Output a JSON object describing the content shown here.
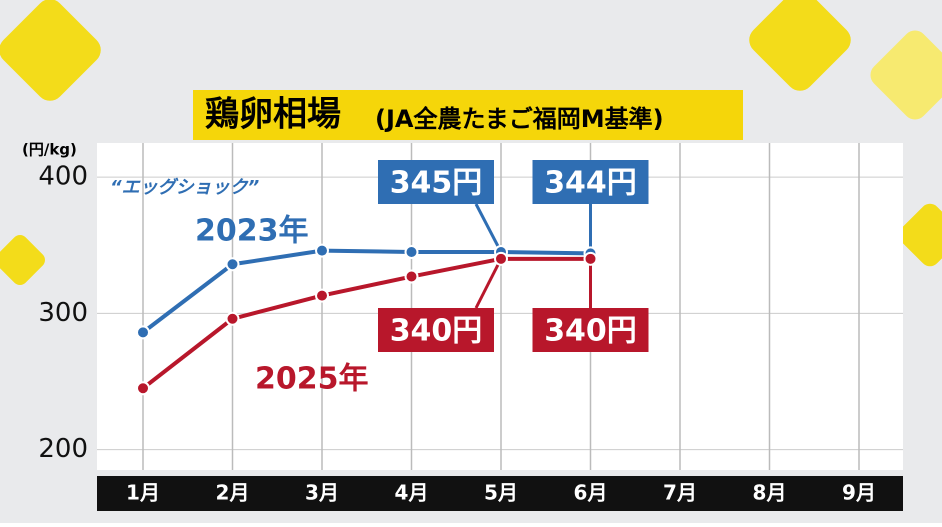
{
  "chart_data": {
    "type": "line",
    "title": "鶏卵相場",
    "subtitle": "(JA全農たまご福岡M基準)",
    "y_label": "(円/kg)",
    "annotation": "“エッグショック”",
    "categories": [
      "1月",
      "2月",
      "3月",
      "4月",
      "5月",
      "6月",
      "7月",
      "8月",
      "9月"
    ],
    "series": [
      {
        "name": "2023年",
        "color": "#2f6eb3",
        "values": [
          286,
          336,
          346,
          345,
          345,
          344,
          null,
          null,
          null
        ],
        "value_labels": [
          null,
          null,
          null,
          null,
          "345円",
          "344円",
          null,
          null,
          null
        ]
      },
      {
        "name": "2025年",
        "color": "#b8172b",
        "values": [
          245,
          296,
          313,
          327,
          340,
          340,
          null,
          null,
          null
        ],
        "value_labels": [
          null,
          null,
          null,
          null,
          "340円",
          "340円",
          null,
          null,
          null
        ]
      }
    ],
    "ylim": [
      185,
      425
    ],
    "yticks": [
      200,
      300,
      400
    ],
    "grid": true
  }
}
